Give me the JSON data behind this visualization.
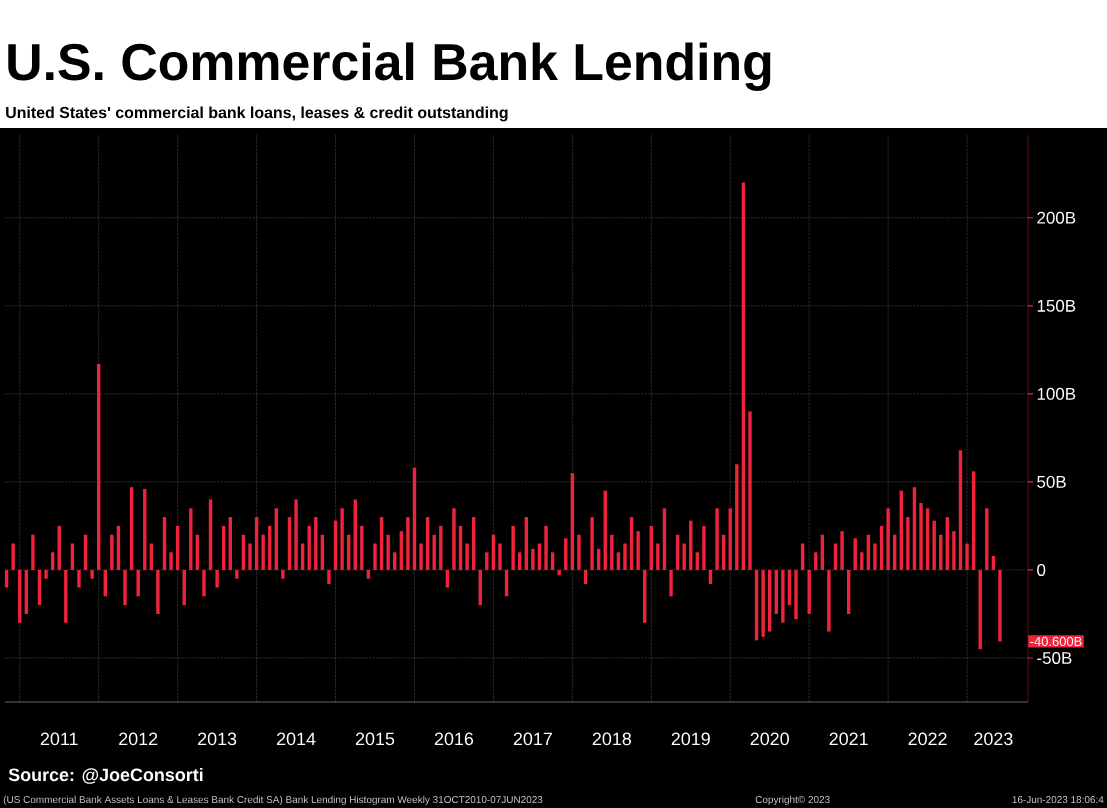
{
  "chart_data": {
    "type": "bar",
    "title": "U.S. Commercial Bank Lending",
    "subtitle": "United States' commercial bank loans, leases & credit outstanding",
    "x": [
      "2010-11",
      "2010-12",
      "2011-01",
      "2011-02",
      "2011-03",
      "2011-04",
      "2011-05",
      "2011-06",
      "2011-07",
      "2011-08",
      "2011-09",
      "2011-10",
      "2011-11",
      "2011-12",
      "2012-01",
      "2012-02",
      "2012-03",
      "2012-04",
      "2012-05",
      "2012-06",
      "2012-07",
      "2012-08",
      "2012-09",
      "2012-10",
      "2012-11",
      "2012-12",
      "2013-01",
      "2013-02",
      "2013-03",
      "2013-04",
      "2013-05",
      "2013-06",
      "2013-07",
      "2013-08",
      "2013-09",
      "2013-10",
      "2013-11",
      "2013-12",
      "2014-01",
      "2014-02",
      "2014-03",
      "2014-04",
      "2014-05",
      "2014-06",
      "2014-07",
      "2014-08",
      "2014-09",
      "2014-10",
      "2014-11",
      "2014-12",
      "2015-01",
      "2015-02",
      "2015-03",
      "2015-04",
      "2015-05",
      "2015-06",
      "2015-07",
      "2015-08",
      "2015-09",
      "2015-10",
      "2015-11",
      "2015-12",
      "2016-01",
      "2016-02",
      "2016-03",
      "2016-04",
      "2016-05",
      "2016-06",
      "2016-07",
      "2016-08",
      "2016-09",
      "2016-10",
      "2016-11",
      "2016-12",
      "2017-01",
      "2017-02",
      "2017-03",
      "2017-04",
      "2017-05",
      "2017-06",
      "2017-07",
      "2017-08",
      "2017-09",
      "2017-10",
      "2017-11",
      "2017-12",
      "2018-01",
      "2018-02",
      "2018-03",
      "2018-04",
      "2018-05",
      "2018-06",
      "2018-07",
      "2018-08",
      "2018-09",
      "2018-10",
      "2018-11",
      "2018-12",
      "2019-01",
      "2019-02",
      "2019-03",
      "2019-04",
      "2019-05",
      "2019-06",
      "2019-07",
      "2019-08",
      "2019-09",
      "2019-10",
      "2019-11",
      "2019-12",
      "2020-01",
      "2020-02",
      "2020-03",
      "2020-04",
      "2020-05",
      "2020-06",
      "2020-07",
      "2020-08",
      "2020-09",
      "2020-10",
      "2020-11",
      "2020-12",
      "2021-01",
      "2021-02",
      "2021-03",
      "2021-04",
      "2021-05",
      "2021-06",
      "2021-07",
      "2021-08",
      "2021-09",
      "2021-10",
      "2021-11",
      "2021-12",
      "2022-01",
      "2022-02",
      "2022-03",
      "2022-04",
      "2022-05",
      "2022-06",
      "2022-07",
      "2022-08",
      "2022-09",
      "2022-10",
      "2022-11",
      "2022-12",
      "2023-01",
      "2023-02",
      "2023-03",
      "2023-04",
      "2023-05",
      "2023-06"
    ],
    "values": [
      -10,
      15,
      -30,
      -25,
      20,
      -20,
      -5,
      10,
      25,
      -30,
      15,
      -10,
      20,
      -5,
      117,
      -15,
      20,
      25,
      -20,
      47,
      -15,
      46,
      15,
      -25,
      30,
      10,
      25,
      -20,
      35,
      20,
      -15,
      40,
      -10,
      25,
      30,
      -5,
      20,
      15,
      30,
      20,
      25,
      35,
      -5,
      30,
      40,
      15,
      25,
      30,
      20,
      -8,
      28,
      35,
      20,
      40,
      25,
      -5,
      15,
      30,
      20,
      10,
      22,
      30,
      58,
      15,
      30,
      20,
      25,
      -10,
      35,
      25,
      15,
      30,
      -20,
      10,
      20,
      15,
      -15,
      25,
      10,
      30,
      12,
      15,
      25,
      10,
      -3,
      18,
      55,
      20,
      -8,
      30,
      12,
      45,
      20,
      10,
      15,
      30,
      22,
      -30,
      25,
      15,
      35,
      -15,
      20,
      15,
      28,
      10,
      25,
      -8,
      35,
      20,
      35,
      60,
      220,
      90,
      -40,
      -38,
      -35,
      -25,
      -30,
      -20,
      -28,
      15,
      -25,
      10,
      20,
      -35,
      15,
      22,
      -25,
      18,
      10,
      20,
      15,
      25,
      35,
      20,
      45,
      30,
      47,
      38,
      35,
      28,
      20,
      30,
      22,
      68,
      15,
      56,
      -45,
      35,
      8,
      -40.6
    ],
    "color": "#f0233c",
    "xlim": [
      "2010-10-24",
      "2023-10-09"
    ],
    "xticks": [
      {
        "value": "2011",
        "label": null
      },
      {
        "value": "2012",
        "label": null
      },
      {
        "value": "2013",
        "label": null
      },
      {
        "value": "2014",
        "label": null
      },
      {
        "value": "2015",
        "label": null
      },
      {
        "value": "2016",
        "label": null
      },
      {
        "value": "2017",
        "label": null
      },
      {
        "value": "2018",
        "label": null
      },
      {
        "value": "2019",
        "label": null
      },
      {
        "value": "2020",
        "label": null
      },
      {
        "value": "2021",
        "label": null
      },
      {
        "value": "2022",
        "label": null
      },
      {
        "value": "2023",
        "label": null
      },
      {
        "value": "2011-07",
        "label": "2011"
      },
      {
        "value": "2012-07",
        "label": "2012"
      },
      {
        "value": "2013-07",
        "label": "2013"
      },
      {
        "value": "2014-07",
        "label": "2014"
      },
      {
        "value": "2015-07",
        "label": "2015"
      },
      {
        "value": "2016-07",
        "label": "2016"
      },
      {
        "value": "2017-07",
        "label": "2017"
      },
      {
        "value": "2018-07",
        "label": "2018"
      },
      {
        "value": "2019-07",
        "label": "2019"
      },
      {
        "value": "2020-07",
        "label": "2020"
      },
      {
        "value": "2021-07",
        "label": "2021"
      },
      {
        "value": "2022-07",
        "label": "2022"
      },
      {
        "value": "2023-05",
        "label": "2023"
      }
    ],
    "ylim": [
      -75,
      247
    ],
    "yticks": [
      {
        "value": -50,
        "label": "-50B"
      },
      0,
      {
        "value": 50,
        "label": "50B"
      },
      {
        "value": 100,
        "label": "100B"
      },
      {
        "value": 150,
        "label": "150B"
      },
      {
        "value": 200,
        "label": "200B"
      }
    ],
    "grid": true,
    "annotations": [
      "-40.600B",
      "Source: @JoeConsorti",
      "(US Commercial Bank Assets Loans & Leases Bank Credit SA) Bank Lending Histogram  Weekly 31OCT2010-07JUN2023",
      "Copyright© 2023",
      "16-Jun-2023 18:06:4"
    ]
  }
}
